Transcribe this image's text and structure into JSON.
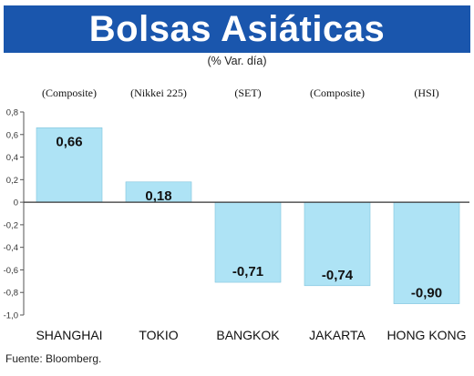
{
  "header": {
    "title": "Bolsas Asiáticas",
    "subtitle": "(% Var. día)"
  },
  "footer": {
    "source": "Fuente: Bloomberg."
  },
  "colors": {
    "banner": "#1a56ad",
    "bar": "#aee3f5",
    "bar_stroke": "#7fc3dd",
    "axis": "#555555",
    "grid": "#d8d8d8"
  },
  "chart_data": {
    "type": "bar",
    "title": "Bolsas Asiáticas",
    "subtitle": "(% Var. día)",
    "categories": [
      "SHANGHAI",
      "TOKIO",
      "BANGKOK",
      "JAKARTA",
      "HONG KONG"
    ],
    "index_names": [
      "(Composite)",
      "(Nikkei 225)",
      "(SET)",
      "(Composite)",
      "(HSI)"
    ],
    "values": [
      0.66,
      0.18,
      -0.71,
      -0.74,
      -0.9
    ],
    "value_labels": [
      "0,66",
      "0,18",
      "-0,71",
      "-0,74",
      "-0,90"
    ],
    "ylim": [
      -1.0,
      0.8
    ],
    "yticks": [
      0.8,
      0.6,
      0.4,
      0.2,
      0,
      -0.2,
      -0.4,
      -0.6,
      -0.8,
      -1.0
    ],
    "ytick_labels": [
      "0,8",
      "0,6",
      "0,4",
      "0,2",
      "0",
      "-0,2",
      "-0,4",
      "-0,6",
      "-0,8",
      "-1,0"
    ],
    "xlabel": "",
    "ylabel": "",
    "grid": false,
    "legend": "none"
  }
}
